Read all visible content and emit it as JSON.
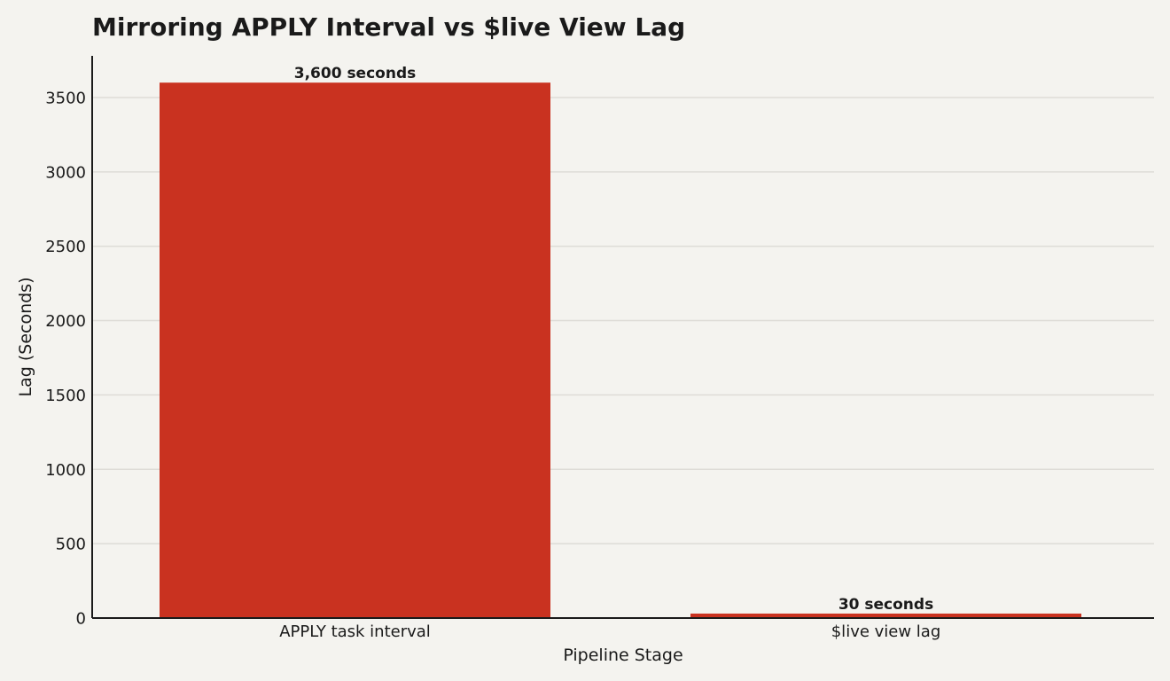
{
  "colors": {
    "background": "#f4f3ef",
    "bar": "#c93220",
    "grid": "#dedcd7",
    "axis": "#1a1a1a",
    "text": "#1a1a1a"
  },
  "chart_data": {
    "type": "bar",
    "title": "Mirroring APPLY Interval vs $live View Lag",
    "xlabel": "Pipeline Stage",
    "ylabel": "Lag (Seconds)",
    "categories": [
      "APPLY task interval",
      "$live view lag"
    ],
    "values": [
      3600,
      30
    ],
    "data_labels": [
      "3,600 seconds",
      "30 seconds"
    ],
    "ylim": [
      0,
      3780
    ],
    "yticks": [
      0,
      500,
      1000,
      1500,
      2000,
      2500,
      3000,
      3500
    ],
    "grid": "horizontal",
    "legend": "none"
  }
}
